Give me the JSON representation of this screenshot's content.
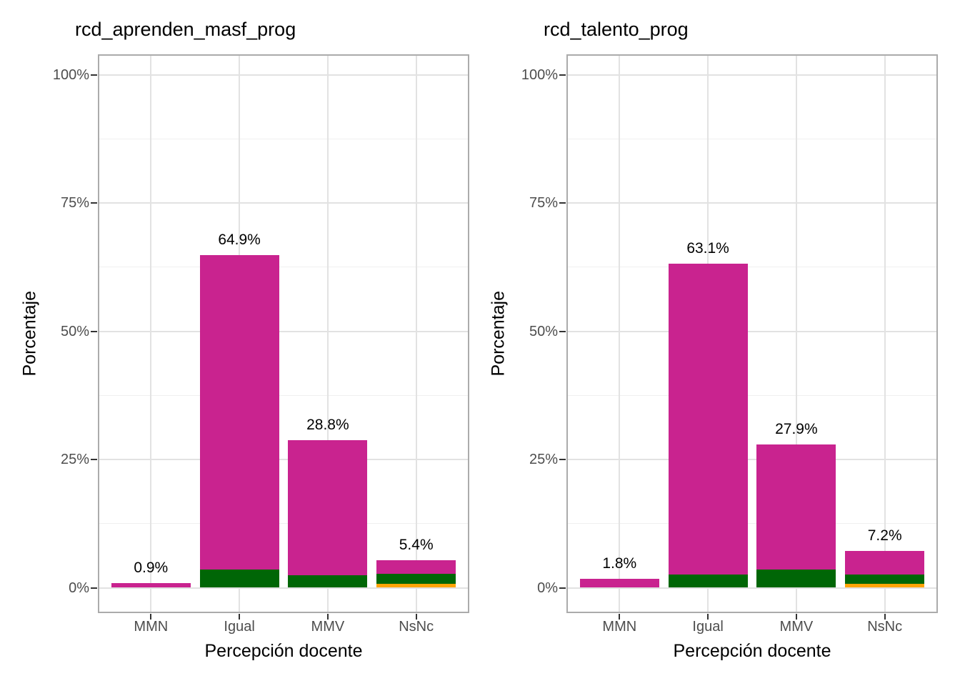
{
  "figure": {
    "background": "#FFFFFF"
  },
  "palette": {
    "magenta": "#C9238F",
    "dark_green": "#006606",
    "orange": "#FFA405",
    "axis_text_gray": "#4D4D4D",
    "panel_border_gray": "#ABABAB",
    "grid_major_gray": "#E2E2E2",
    "grid_minor_gray": "#F0F0F0",
    "tick_mark_gray": "#333333",
    "label_black": "#000000"
  },
  "chart_data": [
    {
      "type": "bar",
      "stacked": true,
      "title": "rcd_aprenden_masf_prog",
      "xlabel": "Percepción docente",
      "ylabel": "Porcentaje",
      "categories": [
        "MMN",
        "Igual",
        "MMV",
        "NsNc"
      ],
      "y_tick_labels": [
        "0%",
        "25%",
        "50%",
        "75%",
        "100%"
      ],
      "y_tick_values": [
        0,
        25,
        50,
        75,
        100
      ],
      "y_minor_values": [
        12.5,
        37.5,
        62.5,
        87.5
      ],
      "ylim": [
        0,
        100
      ],
      "grid": "major+minor",
      "legend_position": "none",
      "series": [
        {
          "name": "orange-segment",
          "color": "#FFA405",
          "values": [
            0,
            0,
            0,
            0.7
          ]
        },
        {
          "name": "green-segment",
          "color": "#006606",
          "values": [
            0,
            3.5,
            2.5,
            2.0
          ]
        },
        {
          "name": "magenta-segment",
          "color": "#C9238F",
          "values": [
            0.9,
            61.4,
            26.3,
            2.7
          ]
        }
      ],
      "totals": [
        0.9,
        64.9,
        28.8,
        5.4
      ],
      "bar_labels": [
        "0.9%",
        "64.9%",
        "28.8%",
        "5.4%"
      ]
    },
    {
      "type": "bar",
      "stacked": true,
      "title": "rcd_talento_prog",
      "xlabel": "Percepción docente",
      "ylabel": "Porcentaje",
      "categories": [
        "MMN",
        "Igual",
        "MMV",
        "NsNc"
      ],
      "y_tick_labels": [
        "0%",
        "25%",
        "50%",
        "75%",
        "100%"
      ],
      "y_tick_values": [
        0,
        25,
        50,
        75,
        100
      ],
      "y_minor_values": [
        12.5,
        37.5,
        62.5,
        87.5
      ],
      "ylim": [
        0,
        100
      ],
      "grid": "major+minor",
      "legend_position": "none",
      "series": [
        {
          "name": "orange-segment",
          "color": "#FFA405",
          "values": [
            0,
            0,
            0,
            0.7
          ]
        },
        {
          "name": "green-segment",
          "color": "#006606",
          "values": [
            0,
            2.6,
            3.5,
            1.9
          ]
        },
        {
          "name": "magenta-segment",
          "color": "#C9238F",
          "values": [
            1.8,
            60.5,
            24.4,
            4.6
          ]
        }
      ],
      "totals": [
        1.8,
        63.1,
        27.9,
        7.2
      ],
      "bar_labels": [
        "1.8%",
        "63.1%",
        "27.9%",
        "7.2%"
      ]
    }
  ]
}
